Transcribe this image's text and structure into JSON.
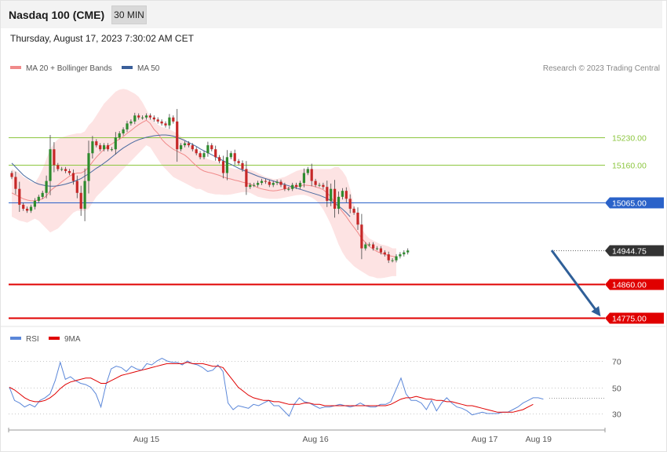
{
  "header": {
    "title": "Nasdaq 100 (CME)",
    "interval": "30 MIN",
    "timestamp": "Thursday, August 17, 2023 7:30:02 AM CET"
  },
  "copyright": "Research © 2023 Trading Central",
  "colors": {
    "bollinger_fill": "#fde3e3",
    "ma20": "#f08a8a",
    "ma50": "#4a6aa0",
    "resistance": "#8cc63f",
    "pivot": "#2a62c9",
    "support": "#e00000",
    "candle_up": "#2e8b2e",
    "candle_down": "#c62828",
    "arrow": "#2f5f98",
    "rsi": "#5b87d9",
    "rsi_ma": "#e00000",
    "current_price": "#333333"
  },
  "chart_data": [
    {
      "type": "candlestick",
      "legend": [
        {
          "label": "MA 20 + Bollinger Bands",
          "color": "#f08a8a"
        },
        {
          "label": "MA 50",
          "color": "#3a5f9a"
        }
      ],
      "levels": [
        {
          "value": 15230.0,
          "label": "15230.00",
          "kind": "resistance"
        },
        {
          "value": 15160.0,
          "label": "15160.00",
          "kind": "resistance"
        },
        {
          "value": 15065.0,
          "label": "15065.00",
          "kind": "pivot"
        },
        {
          "value": 14944.75,
          "label": "14944.75",
          "kind": "current"
        },
        {
          "value": 14860.0,
          "label": "14860.00",
          "kind": "support"
        },
        {
          "value": 14775.0,
          "label": "14775.00",
          "kind": "support"
        }
      ],
      "x_labels": [
        {
          "label": "Aug 15",
          "index": 35
        },
        {
          "label": "Aug 16",
          "index": 79
        },
        {
          "label": "Aug 17",
          "index": 123
        },
        {
          "label": "Aug 19",
          "index": 137
        }
      ],
      "closes": [
        15130,
        15100,
        15060,
        15050,
        15045,
        15055,
        15070,
        15080,
        15090,
        15120,
        15200,
        15160,
        15150,
        15150,
        15145,
        15140,
        15120,
        15090,
        15050,
        15120,
        15190,
        15220,
        15210,
        15200,
        15210,
        15200,
        15200,
        15230,
        15240,
        15250,
        15265,
        15270,
        15285,
        15280,
        15280,
        15285,
        15280,
        15275,
        15270,
        15265,
        15260,
        15280,
        15270,
        15200,
        15210,
        15215,
        15210,
        15200,
        15190,
        15180,
        15190,
        15210,
        15200,
        15180,
        15170,
        15140,
        15180,
        15190,
        15170,
        15165,
        15150,
        15105,
        15110,
        15110,
        15115,
        15120,
        15118,
        15110,
        15115,
        15118,
        15110,
        15100,
        15100,
        15110,
        15105,
        15115,
        15140,
        15150,
        15120,
        15110,
        15110,
        15105,
        15070,
        15100,
        15050,
        15080,
        15095,
        15075,
        15050,
        15040,
        15010,
        14950,
        14960,
        14960,
        14950,
        14950,
        14940,
        14935,
        14920,
        14920,
        14930,
        14935,
        14940,
        14944.75
      ],
      "ma20": [
        15090,
        15085,
        15080,
        15075,
        15072,
        15070,
        15070,
        15072,
        15075,
        15082,
        15095,
        15103,
        15110,
        15118,
        15125,
        15132,
        15137,
        15140,
        15140,
        15145,
        15155,
        15168,
        15180,
        15190,
        15200,
        15207,
        15213,
        15220,
        15225,
        15232,
        15240,
        15247,
        15255,
        15262,
        15268,
        15273,
        15265,
        15250,
        15240,
        15225,
        15215,
        15207,
        15200,
        15195,
        15190,
        15185,
        15177,
        15167,
        15158,
        15150,
        15145,
        15142,
        15140,
        15137,
        15134,
        15130,
        15127,
        15125,
        15122,
        15120,
        15117,
        15115,
        15112,
        15108,
        15103,
        15100,
        15098,
        15096,
        15095,
        15096,
        15098,
        15100,
        15102,
        15104,
        15106,
        15108,
        15110,
        15109,
        15108,
        15105,
        15102,
        15098,
        15090,
        15080,
        15065,
        15055,
        15042,
        15030,
        15016,
        15003,
        14990,
        14975,
        14965,
        14955,
        14948,
        14942,
        14938,
        14935,
        14932,
        14930,
        14928
      ],
      "bb_upper": [
        15150,
        15145,
        15140,
        15130,
        15125,
        15118,
        15115,
        15130,
        15150,
        15175,
        15200,
        15215,
        15225,
        15230,
        15233,
        15236,
        15238,
        15240,
        15240,
        15245,
        15260,
        15270,
        15285,
        15300,
        15315,
        15325,
        15335,
        15345,
        15350,
        15352,
        15350,
        15345,
        15340,
        15332,
        15318,
        15300,
        15280,
        15270,
        15262,
        15256,
        15253,
        15250,
        15245,
        15240,
        15232,
        15225,
        15215,
        15205,
        15195,
        15185,
        15180,
        15175,
        15172,
        15170,
        15165,
        15160,
        15155,
        15153,
        15150,
        15150,
        15150,
        15150,
        15148,
        15145,
        15140,
        15135,
        15130,
        15128,
        15125,
        15125,
        15128,
        15130,
        15135,
        15140,
        15145,
        15148,
        15150,
        15150,
        15150,
        15150,
        15150,
        15150,
        15150,
        15150,
        15155,
        15155,
        15145,
        15130,
        15100,
        15060,
        15030,
        15000,
        14985,
        14975,
        14970,
        14965,
        14960,
        14958,
        14955,
        14950,
        14950
      ],
      "bb_lower": [
        15030,
        15025,
        15020,
        15018,
        15015,
        15020,
        15025,
        15020,
        15010,
        15000,
        14990,
        14995,
        15000,
        15010,
        15020,
        15030,
        15040,
        15045,
        15045,
        15045,
        15050,
        15065,
        15080,
        15090,
        15100,
        15110,
        15120,
        15130,
        15140,
        15150,
        15160,
        15170,
        15180,
        15190,
        15200,
        15210,
        15205,
        15190,
        15175,
        15160,
        15150,
        15140,
        15130,
        15125,
        15120,
        15115,
        15110,
        15105,
        15100,
        15100,
        15095,
        15090,
        15088,
        15086,
        15086,
        15085,
        15085,
        15086,
        15088,
        15090,
        15092,
        15092,
        15090,
        15085,
        15080,
        15078,
        15076,
        15075,
        15075,
        15075,
        15076,
        15078,
        15080,
        15082,
        15084,
        15085,
        15085,
        15082,
        15078,
        15072,
        15062,
        15048,
        15030,
        15010,
        14985,
        14960,
        14940,
        14925,
        14915,
        14905,
        14898,
        14892,
        14886,
        14880,
        14878,
        14875,
        14875,
        14876,
        14878,
        14880,
        14880
      ],
      "ma50": [
        15165,
        15155,
        15145,
        15135,
        15128,
        15122,
        15116,
        15112,
        15110,
        15108,
        15107,
        15107,
        15108,
        15110,
        15112,
        15115,
        15118,
        15122,
        15126,
        15132,
        15138,
        15145,
        15152,
        15158,
        15165,
        15172,
        15180,
        15188,
        15196,
        15203,
        15209,
        15215,
        15220,
        15224,
        15227,
        15230,
        15232,
        15234,
        15235,
        15236,
        15236,
        15235,
        15233,
        15230,
        15226,
        15222,
        15217,
        15212,
        15207,
        15201,
        15196,
        15191,
        15186,
        15181,
        15176,
        15171,
        15166,
        15162,
        15157,
        15152,
        15148,
        15144,
        15140,
        15136,
        15132,
        15129,
        15126,
        15123,
        15120,
        15117,
        15114,
        15111,
        15108,
        15105,
        15102,
        15099,
        15096,
        15093,
        15090,
        15087,
        15084,
        15080,
        15076,
        15070,
        15064,
        15057,
        15049,
        15040,
        15030
      ]
    },
    {
      "type": "line",
      "legend": [
        {
          "label": "RSI",
          "color": "#5b87d9"
        },
        {
          "label": "9MA",
          "color": "#e00000"
        }
      ],
      "y_ticks": [
        70,
        50,
        30
      ],
      "ylim": [
        18,
        82
      ],
      "rsi": [
        50,
        40,
        38,
        35,
        37,
        35,
        40,
        42,
        45,
        55,
        69,
        56,
        58,
        55,
        53,
        52,
        50,
        45,
        35,
        52,
        64,
        66,
        65,
        62,
        66,
        64,
        63,
        68,
        67,
        70,
        72,
        70,
        69,
        69,
        67,
        70,
        68,
        67,
        65,
        62,
        63,
        67,
        62,
        38,
        33,
        36,
        35,
        34,
        37,
        36,
        38,
        40,
        36,
        36,
        32,
        28,
        37,
        42,
        39,
        38,
        36,
        34,
        35,
        35,
        36,
        37,
        36,
        35,
        36,
        38,
        36,
        35,
        35,
        37,
        37,
        39,
        48,
        57,
        45,
        40,
        40,
        38,
        33,
        40,
        32,
        38,
        42,
        38,
        35,
        34,
        32,
        29,
        30,
        31,
        30,
        30,
        30,
        31,
        31,
        33,
        35,
        38,
        40,
        42,
        42,
        41
      ],
      "rsi_ma": [
        50,
        48,
        45,
        42,
        40,
        39,
        39,
        40,
        42,
        45,
        49,
        52,
        54,
        55,
        56,
        57,
        57,
        55,
        53,
        53,
        55,
        57,
        59,
        60,
        61,
        62,
        63,
        64,
        65,
        66,
        67,
        68,
        68,
        68,
        68,
        69,
        68,
        68,
        68,
        67,
        66,
        66,
        65,
        60,
        55,
        50,
        47,
        44,
        42,
        41,
        40,
        40,
        39,
        39,
        38,
        37,
        37,
        37,
        38,
        38,
        37,
        37,
        36,
        36,
        36,
        36,
        36,
        36,
        36,
        36,
        36,
        36,
        36,
        36,
        36,
        37,
        39,
        41,
        42,
        42,
        43,
        42,
        41,
        41,
        40,
        40,
        39,
        39,
        38,
        37,
        36,
        36,
        35,
        34,
        33,
        32,
        31,
        31,
        31,
        31,
        32,
        33,
        35,
        37
      ],
      "time_axis_labels": [
        "Aug 15",
        "Aug 16",
        "Aug 17",
        "Aug 19"
      ]
    }
  ]
}
